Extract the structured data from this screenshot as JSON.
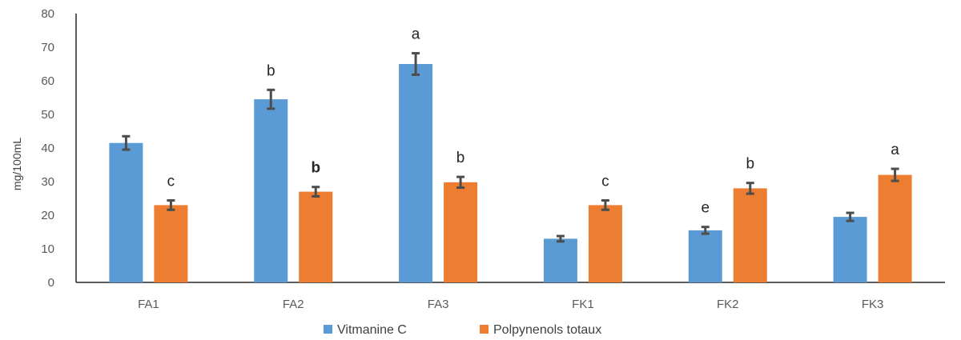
{
  "chart_data": {
    "type": "bar",
    "title": "",
    "xlabel": "",
    "ylabel": "mg/100mL",
    "ylim": [
      0,
      80
    ],
    "yticks": [
      0,
      10,
      20,
      30,
      40,
      50,
      60,
      70,
      80
    ],
    "grid": false,
    "legend_position": "bottom",
    "categories": [
      "FA1",
      "FA2",
      "FA3",
      "FK1",
      "FK2",
      "FK3"
    ],
    "series": [
      {
        "name": "Vitmanine C",
        "color": "#5B9BD5",
        "values": [
          41.5,
          54.5,
          65,
          13,
          15.5,
          19.5
        ],
        "errors": [
          2,
          2.8,
          3.2,
          0.8,
          1,
          1.2
        ],
        "labels": [
          "",
          "b",
          "a",
          "",
          "e",
          ""
        ]
      },
      {
        "name": "Polpynenols totaux",
        "color": "#ED7D31",
        "values": [
          23,
          27,
          29.8,
          23,
          28,
          32
        ],
        "errors": [
          1.4,
          1.4,
          1.6,
          1.4,
          1.6,
          1.8
        ],
        "labels": [
          "c",
          "b",
          "b",
          "c",
          "b",
          "a"
        ],
        "bold_labels": [
          false,
          true,
          false,
          false,
          false,
          false
        ]
      }
    ],
    "error_bar_color": "#4D4D4D"
  }
}
